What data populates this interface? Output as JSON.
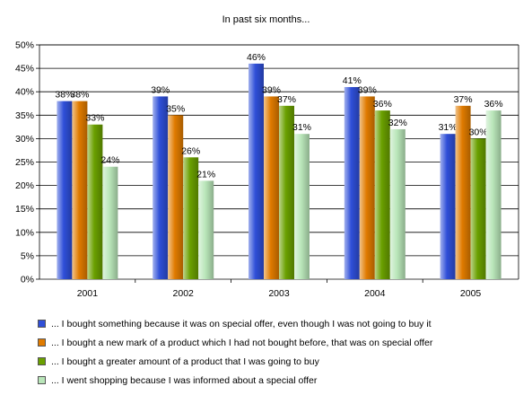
{
  "chart_data": {
    "type": "bar",
    "title": "In past six months...",
    "categories": [
      "2001",
      "2002",
      "2003",
      "2004",
      "2005"
    ],
    "ylim": [
      0,
      50
    ],
    "y_unit": "%",
    "y_ticks": [
      "0%",
      "5%",
      "10%",
      "15%",
      "20%",
      "25%",
      "30%",
      "35%",
      "40%",
      "45%",
      "50%"
    ],
    "grid": true,
    "legend_position": "bottom",
    "series": [
      {
        "name": "... I bought something because it was on special offer, even though I was not going to buy it",
        "values": [
          38,
          39,
          46,
          41,
          31
        ],
        "labels": [
          "38%",
          "39%",
          "46%",
          "41%",
          "31%"
        ],
        "color": "#2f4fd8"
      },
      {
        "name": "... I bought a new mark of a product which I had not bought before, that was on special offer",
        "values": [
          38,
          35,
          39,
          39,
          37
        ],
        "labels": [
          "38%",
          "35%",
          "39%",
          "39%",
          "37%"
        ],
        "color": "#e07b00"
      },
      {
        "name": "... I bought a greater amount of a product that I was going to buy",
        "values": [
          33,
          26,
          37,
          36,
          30
        ],
        "labels": [
          "33%",
          "26%",
          "37%",
          "36%",
          "30%"
        ],
        "color": "#6aa000"
      },
      {
        "name": "... I went shopping because I was informed about a special offer",
        "values": [
          24,
          21,
          31,
          32,
          36
        ],
        "labels": [
          "24%",
          "21%",
          "31%",
          "32%",
          "36%"
        ],
        "color": "#b9e6b9"
      }
    ]
  }
}
